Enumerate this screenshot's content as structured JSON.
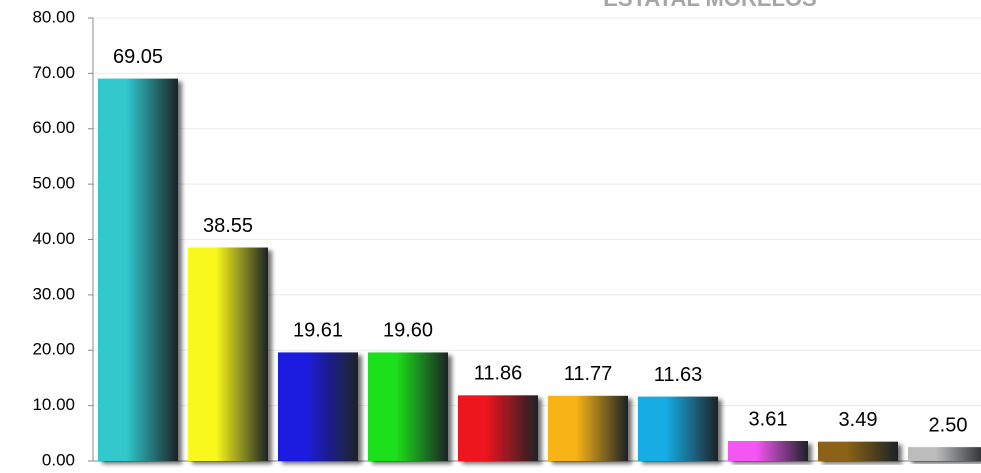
{
  "chart_data": {
    "type": "bar",
    "title": "ESTATAL MORELOS",
    "categories": [
      null,
      null,
      null,
      null,
      null,
      null,
      null,
      null,
      null,
      null
    ],
    "values": [
      69.05,
      38.55,
      19.61,
      19.6,
      11.86,
      11.77,
      11.63,
      3.61,
      3.49,
      2.5
    ],
    "value_labels": [
      "69.05",
      "38.55",
      "19.61",
      "19.60",
      "11.86",
      "11.77",
      "11.63",
      "3.61",
      "3.49",
      "2.50"
    ],
    "colors": [
      "#30c8cc",
      "#f8f81c",
      "#1c1ce0",
      "#1ce01c",
      "#ec141e",
      "#f8b418",
      "#18ace4",
      "#f456f4",
      "#8c6414",
      "#bcbcbc"
    ],
    "ylim": [
      0,
      80
    ],
    "yticks": [
      {
        "value": 0,
        "label": "0.00"
      },
      {
        "value": 10,
        "label": "10.00"
      },
      {
        "value": 20,
        "label": "20.00"
      },
      {
        "value": 30,
        "label": "30.00"
      },
      {
        "value": 40,
        "label": "40.00"
      },
      {
        "value": 50,
        "label": "50.00"
      },
      {
        "value": 60,
        "label": "60.00"
      },
      {
        "value": 70,
        "label": "70.00"
      },
      {
        "value": 80,
        "label": "80.00"
      }
    ],
    "grid": true
  }
}
